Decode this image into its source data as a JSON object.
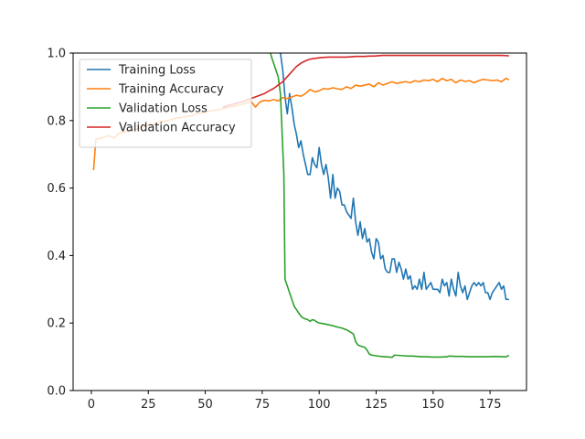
{
  "chart_data": {
    "type": "line",
    "title": "",
    "xlabel": "",
    "ylabel": "",
    "xlim": [
      -8,
      191
    ],
    "ylim": [
      0,
      1.0
    ],
    "x_ticks": [
      0,
      25,
      50,
      75,
      100,
      125,
      150,
      175
    ],
    "y_ticks": [
      0.0,
      0.2,
      0.4,
      0.6,
      0.8,
      1.0
    ],
    "x_tick_labels": [
      "0",
      "25",
      "50",
      "75",
      "100",
      "125",
      "150",
      "175"
    ],
    "y_tick_labels": [
      "0.0",
      "0.2",
      "0.4",
      "0.6",
      "0.8",
      "1.0"
    ],
    "grid": false,
    "legend_position": "top-left",
    "series": [
      {
        "name": "Training Loss",
        "color": "#1f77b4",
        "points": [
          [
            80,
            1.05
          ],
          [
            81,
            1.02
          ],
          [
            82,
            1.04
          ],
          [
            83,
            1.0
          ],
          [
            84,
            0.95
          ],
          [
            85,
            0.87
          ],
          [
            86,
            0.82
          ],
          [
            87,
            0.88
          ],
          [
            88,
            0.84
          ],
          [
            89,
            0.79
          ],
          [
            90,
            0.76
          ],
          [
            91,
            0.72
          ],
          [
            92,
            0.74
          ],
          [
            93,
            0.7
          ],
          [
            94,
            0.67
          ],
          [
            95,
            0.64
          ],
          [
            96,
            0.64
          ],
          [
            97,
            0.69
          ],
          [
            98,
            0.67
          ],
          [
            99,
            0.66
          ],
          [
            100,
            0.72
          ],
          [
            101,
            0.67
          ],
          [
            102,
            0.64
          ],
          [
            103,
            0.67
          ],
          [
            104,
            0.63
          ],
          [
            105,
            0.57
          ],
          [
            106,
            0.64
          ],
          [
            107,
            0.57
          ],
          [
            108,
            0.6
          ],
          [
            109,
            0.59
          ],
          [
            110,
            0.55
          ],
          [
            111,
            0.55
          ],
          [
            112,
            0.53
          ],
          [
            113,
            0.52
          ],
          [
            114,
            0.51
          ],
          [
            115,
            0.57
          ],
          [
            116,
            0.5
          ],
          [
            117,
            0.46
          ],
          [
            118,
            0.5
          ],
          [
            119,
            0.45
          ],
          [
            120,
            0.48
          ],
          [
            121,
            0.44
          ],
          [
            122,
            0.45
          ],
          [
            123,
            0.41
          ],
          [
            124,
            0.39
          ],
          [
            125,
            0.45
          ],
          [
            126,
            0.44
          ],
          [
            127,
            0.39
          ],
          [
            128,
            0.4
          ],
          [
            129,
            0.36
          ],
          [
            130,
            0.35
          ],
          [
            131,
            0.35
          ],
          [
            132,
            0.39
          ],
          [
            133,
            0.39
          ],
          [
            134,
            0.35
          ],
          [
            135,
            0.38
          ],
          [
            136,
            0.36
          ],
          [
            137,
            0.33
          ],
          [
            138,
            0.36
          ],
          [
            139,
            0.33
          ],
          [
            140,
            0.34
          ],
          [
            141,
            0.3
          ],
          [
            142,
            0.31
          ],
          [
            143,
            0.3
          ],
          [
            144,
            0.33
          ],
          [
            145,
            0.3
          ],
          [
            146,
            0.35
          ],
          [
            147,
            0.3
          ],
          [
            148,
            0.31
          ],
          [
            149,
            0.32
          ],
          [
            150,
            0.3
          ],
          [
            151,
            0.3
          ],
          [
            152,
            0.3
          ],
          [
            153,
            0.29
          ],
          [
            154,
            0.33
          ],
          [
            155,
            0.31
          ],
          [
            156,
            0.32
          ],
          [
            157,
            0.28
          ],
          [
            158,
            0.33
          ],
          [
            159,
            0.3
          ],
          [
            160,
            0.28
          ],
          [
            161,
            0.35
          ],
          [
            162,
            0.31
          ],
          [
            163,
            0.29
          ],
          [
            164,
            0.31
          ],
          [
            165,
            0.27
          ],
          [
            166,
            0.29
          ],
          [
            167,
            0.31
          ],
          [
            168,
            0.32
          ],
          [
            169,
            0.31
          ],
          [
            170,
            0.32
          ],
          [
            171,
            0.31
          ],
          [
            172,
            0.32
          ],
          [
            173,
            0.29
          ],
          [
            174,
            0.29
          ],
          [
            175,
            0.27
          ],
          [
            176,
            0.29
          ],
          [
            177,
            0.3
          ],
          [
            178,
            0.31
          ],
          [
            179,
            0.32
          ],
          [
            180,
            0.3
          ],
          [
            181,
            0.31
          ],
          [
            182,
            0.27
          ],
          [
            183,
            0.27
          ]
        ]
      },
      {
        "name": "Training Accuracy",
        "color": "#ff7f0e",
        "points": [
          [
            1,
            0.655
          ],
          [
            2,
            0.745
          ],
          [
            4,
            0.748
          ],
          [
            6,
            0.752
          ],
          [
            8,
            0.755
          ],
          [
            10,
            0.748
          ],
          [
            12,
            0.762
          ],
          [
            14,
            0.765
          ],
          [
            16,
            0.768
          ],
          [
            18,
            0.772
          ],
          [
            20,
            0.775
          ],
          [
            22,
            0.78
          ],
          [
            24,
            0.785
          ],
          [
            26,
            0.788
          ],
          [
            28,
            0.79
          ],
          [
            30,
            0.795
          ],
          [
            32,
            0.798
          ],
          [
            34,
            0.8
          ],
          [
            36,
            0.805
          ],
          [
            38,
            0.808
          ],
          [
            40,
            0.81
          ],
          [
            42,
            0.812
          ],
          [
            44,
            0.815
          ],
          [
            46,
            0.82
          ],
          [
            48,
            0.822
          ],
          [
            50,
            0.825
          ],
          [
            52,
            0.828
          ],
          [
            54,
            0.83
          ],
          [
            56,
            0.832
          ],
          [
            58,
            0.835
          ],
          [
            60,
            0.84
          ],
          [
            62,
            0.842
          ],
          [
            64,
            0.845
          ],
          [
            66,
            0.848
          ],
          [
            68,
            0.852
          ],
          [
            70,
            0.858
          ],
          [
            72,
            0.84
          ],
          [
            74,
            0.855
          ],
          [
            76,
            0.86
          ],
          [
            78,
            0.858
          ],
          [
            80,
            0.862
          ],
          [
            82,
            0.858
          ],
          [
            84,
            0.868
          ],
          [
            86,
            0.865
          ],
          [
            88,
            0.87
          ],
          [
            90,
            0.875
          ],
          [
            92,
            0.872
          ],
          [
            94,
            0.88
          ],
          [
            96,
            0.892
          ],
          [
            98,
            0.885
          ],
          [
            100,
            0.888
          ],
          [
            102,
            0.895
          ],
          [
            104,
            0.893
          ],
          [
            106,
            0.897
          ],
          [
            108,
            0.894
          ],
          [
            110,
            0.892
          ],
          [
            112,
            0.9
          ],
          [
            114,
            0.895
          ],
          [
            116,
            0.905
          ],
          [
            118,
            0.902
          ],
          [
            120,
            0.905
          ],
          [
            122,
            0.908
          ],
          [
            124,
            0.9
          ],
          [
            126,
            0.912
          ],
          [
            128,
            0.905
          ],
          [
            130,
            0.91
          ],
          [
            132,
            0.915
          ],
          [
            134,
            0.91
          ],
          [
            136,
            0.913
          ],
          [
            138,
            0.915
          ],
          [
            140,
            0.912
          ],
          [
            142,
            0.918
          ],
          [
            144,
            0.915
          ],
          [
            146,
            0.92
          ],
          [
            148,
            0.918
          ],
          [
            150,
            0.922
          ],
          [
            152,
            0.915
          ],
          [
            154,
            0.925
          ],
          [
            156,
            0.918
          ],
          [
            158,
            0.922
          ],
          [
            160,
            0.912
          ],
          [
            162,
            0.92
          ],
          [
            164,
            0.916
          ],
          [
            166,
            0.918
          ],
          [
            168,
            0.912
          ],
          [
            170,
            0.918
          ],
          [
            172,
            0.922
          ],
          [
            174,
            0.92
          ],
          [
            176,
            0.918
          ],
          [
            178,
            0.92
          ],
          [
            180,
            0.915
          ],
          [
            182,
            0.925
          ],
          [
            183,
            0.922
          ]
        ]
      },
      {
        "name": "Validation Loss",
        "color": "#2ca02c",
        "points": [
          [
            77,
            1.05
          ],
          [
            78,
            1.02
          ],
          [
            79,
            0.99
          ],
          [
            80,
            0.97
          ],
          [
            81,
            0.95
          ],
          [
            82,
            0.93
          ],
          [
            83,
            0.88
          ],
          [
            84,
            0.72
          ],
          [
            84.5,
            0.64
          ],
          [
            85,
            0.33
          ],
          [
            86,
            0.31
          ],
          [
            87,
            0.29
          ],
          [
            88,
            0.27
          ],
          [
            89,
            0.25
          ],
          [
            90,
            0.24
          ],
          [
            91,
            0.23
          ],
          [
            92,
            0.22
          ],
          [
            93,
            0.215
          ],
          [
            94,
            0.212
          ],
          [
            95,
            0.21
          ],
          [
            96,
            0.205
          ],
          [
            97,
            0.21
          ],
          [
            98,
            0.208
          ],
          [
            99,
            0.203
          ],
          [
            100,
            0.2
          ],
          [
            102,
            0.198
          ],
          [
            104,
            0.195
          ],
          [
            106,
            0.192
          ],
          [
            108,
            0.188
          ],
          [
            110,
            0.185
          ],
          [
            112,
            0.18
          ],
          [
            114,
            0.172
          ],
          [
            115,
            0.168
          ],
          [
            116,
            0.145
          ],
          [
            117,
            0.135
          ],
          [
            118,
            0.132
          ],
          [
            120,
            0.128
          ],
          [
            121,
            0.12
          ],
          [
            122,
            0.108
          ],
          [
            123,
            0.105
          ],
          [
            125,
            0.103
          ],
          [
            127,
            0.101
          ],
          [
            129,
            0.1
          ],
          [
            131,
            0.099
          ],
          [
            132,
            0.098
          ],
          [
            133,
            0.105
          ],
          [
            135,
            0.104
          ],
          [
            137,
            0.103
          ],
          [
            139,
            0.102
          ],
          [
            141,
            0.102
          ],
          [
            143,
            0.101
          ],
          [
            145,
            0.1
          ],
          [
            147,
            0.1
          ],
          [
            150,
            0.099
          ],
          [
            153,
            0.099
          ],
          [
            156,
            0.1
          ],
          [
            157,
            0.102
          ],
          [
            160,
            0.101
          ],
          [
            163,
            0.101
          ],
          [
            166,
            0.1
          ],
          [
            170,
            0.1
          ],
          [
            174,
            0.1
          ],
          [
            177,
            0.101
          ],
          [
            180,
            0.1
          ],
          [
            182,
            0.1
          ],
          [
            183,
            0.103
          ]
        ]
      },
      {
        "name": "Validation Accuracy",
        "color": "#d62728",
        "points": [
          [
            58,
            0.84
          ],
          [
            60,
            0.845
          ],
          [
            62,
            0.848
          ],
          [
            64,
            0.852
          ],
          [
            66,
            0.855
          ],
          [
            68,
            0.86
          ],
          [
            70,
            0.865
          ],
          [
            72,
            0.87
          ],
          [
            74,
            0.875
          ],
          [
            76,
            0.88
          ],
          [
            78,
            0.888
          ],
          [
            80,
            0.895
          ],
          [
            82,
            0.905
          ],
          [
            84,
            0.915
          ],
          [
            86,
            0.93
          ],
          [
            88,
            0.945
          ],
          [
            90,
            0.96
          ],
          [
            92,
            0.97
          ],
          [
            94,
            0.977
          ],
          [
            96,
            0.982
          ],
          [
            98,
            0.984
          ],
          [
            100,
            0.986
          ],
          [
            102,
            0.987
          ],
          [
            104,
            0.988
          ],
          [
            106,
            0.988
          ],
          [
            108,
            0.988
          ],
          [
            110,
            0.988
          ],
          [
            112,
            0.988
          ],
          [
            114,
            0.989
          ],
          [
            116,
            0.99
          ],
          [
            118,
            0.99
          ],
          [
            120,
            0.99
          ],
          [
            122,
            0.991
          ],
          [
            124,
            0.991
          ],
          [
            126,
            0.992
          ],
          [
            128,
            0.993
          ],
          [
            130,
            0.993
          ],
          [
            135,
            0.993
          ],
          [
            140,
            0.993
          ],
          [
            145,
            0.993
          ],
          [
            150,
            0.993
          ],
          [
            155,
            0.993
          ],
          [
            160,
            0.993
          ],
          [
            165,
            0.993
          ],
          [
            170,
            0.993
          ],
          [
            175,
            0.993
          ],
          [
            180,
            0.993
          ],
          [
            183,
            0.992
          ]
        ]
      }
    ]
  }
}
